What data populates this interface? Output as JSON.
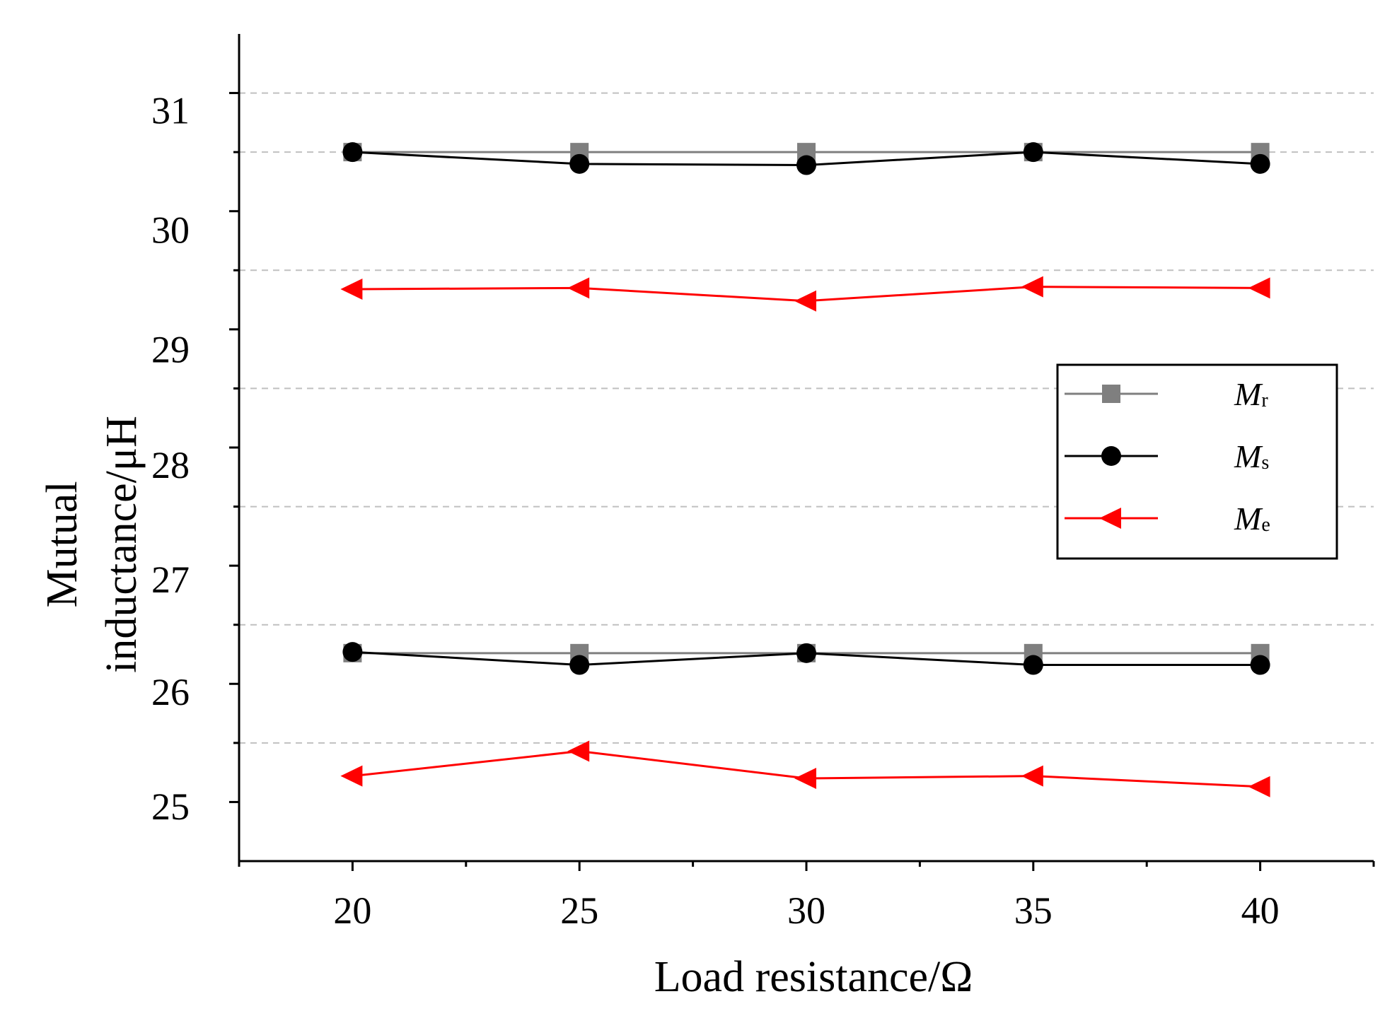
{
  "chart_data": {
    "type": "line",
    "title": "",
    "xlabel": "Load resistance/Ω",
    "ylabel_line1": "Mutual",
    "ylabel_line2": "inductance/μH",
    "xlim": [
      17.5,
      42.5
    ],
    "ylim": [
      24.5,
      31.5
    ],
    "x_ticks": [
      20,
      25,
      30,
      35,
      40
    ],
    "x_tick_labels": [
      "20",
      "25",
      "30",
      "35",
      "40"
    ],
    "x_minor_ticks": [
      17.5,
      22.5,
      27.5,
      32.5,
      37.5,
      42.5
    ],
    "y_ticks": [
      25,
      26,
      27,
      28,
      29,
      30,
      31
    ],
    "y_tick_labels": [
      "25",
      "26",
      "27",
      "28",
      "29",
      "30",
      "31"
    ],
    "y_tick_label_values": [
      24.96,
      25.93,
      26.88,
      27.85,
      28.83,
      29.84,
      30.85
    ],
    "y_minor_ticks": [
      25.5,
      26.5,
      27.5,
      28.5,
      29.5,
      30.5
    ],
    "gridlines_y": [
      25.5,
      26.5,
      27.5,
      28.5,
      29.5,
      30.5,
      31
    ],
    "grid": "dashed horizontal",
    "legend_position": "center-right",
    "colors": {
      "Mr": "#7f7f7f",
      "Ms": "#000000",
      "Me": "#ff0000",
      "grid": "#c0c0c0",
      "axis": "#000000"
    },
    "x": [
      20,
      25,
      30,
      35,
      40
    ],
    "series": [
      {
        "key": "Mr",
        "name": "M",
        "sub": "r",
        "marker": "square",
        "group": "upper",
        "values": [
          30.5,
          30.5,
          30.5,
          30.5,
          30.5
        ]
      },
      {
        "key": "Ms",
        "name": "M",
        "sub": "s",
        "marker": "circle",
        "group": "upper",
        "values": [
          30.5,
          30.4,
          30.39,
          30.5,
          30.4
        ]
      },
      {
        "key": "Me",
        "name": "M",
        "sub": "e",
        "marker": "triangle-left",
        "group": "upper",
        "values": [
          29.34,
          29.35,
          29.24,
          29.36,
          29.35
        ]
      },
      {
        "key": "Mr",
        "name": "M",
        "sub": "r",
        "marker": "square",
        "group": "lower",
        "values": [
          26.26,
          26.26,
          26.26,
          26.26,
          26.26
        ]
      },
      {
        "key": "Ms",
        "name": "M",
        "sub": "s",
        "marker": "circle",
        "group": "lower",
        "values": [
          26.27,
          26.16,
          26.26,
          26.16,
          26.16
        ]
      },
      {
        "key": "Me",
        "name": "M",
        "sub": "e",
        "marker": "triangle-left",
        "group": "lower",
        "values": [
          25.22,
          25.43,
          25.2,
          25.22,
          25.13
        ]
      }
    ],
    "legend": [
      {
        "key": "Mr",
        "label": "M",
        "sub": "r",
        "marker": "square"
      },
      {
        "key": "Ms",
        "label": "M",
        "sub": "s",
        "marker": "circle"
      },
      {
        "key": "Me",
        "label": "M",
        "sub": "e",
        "marker": "triangle-left"
      }
    ]
  }
}
